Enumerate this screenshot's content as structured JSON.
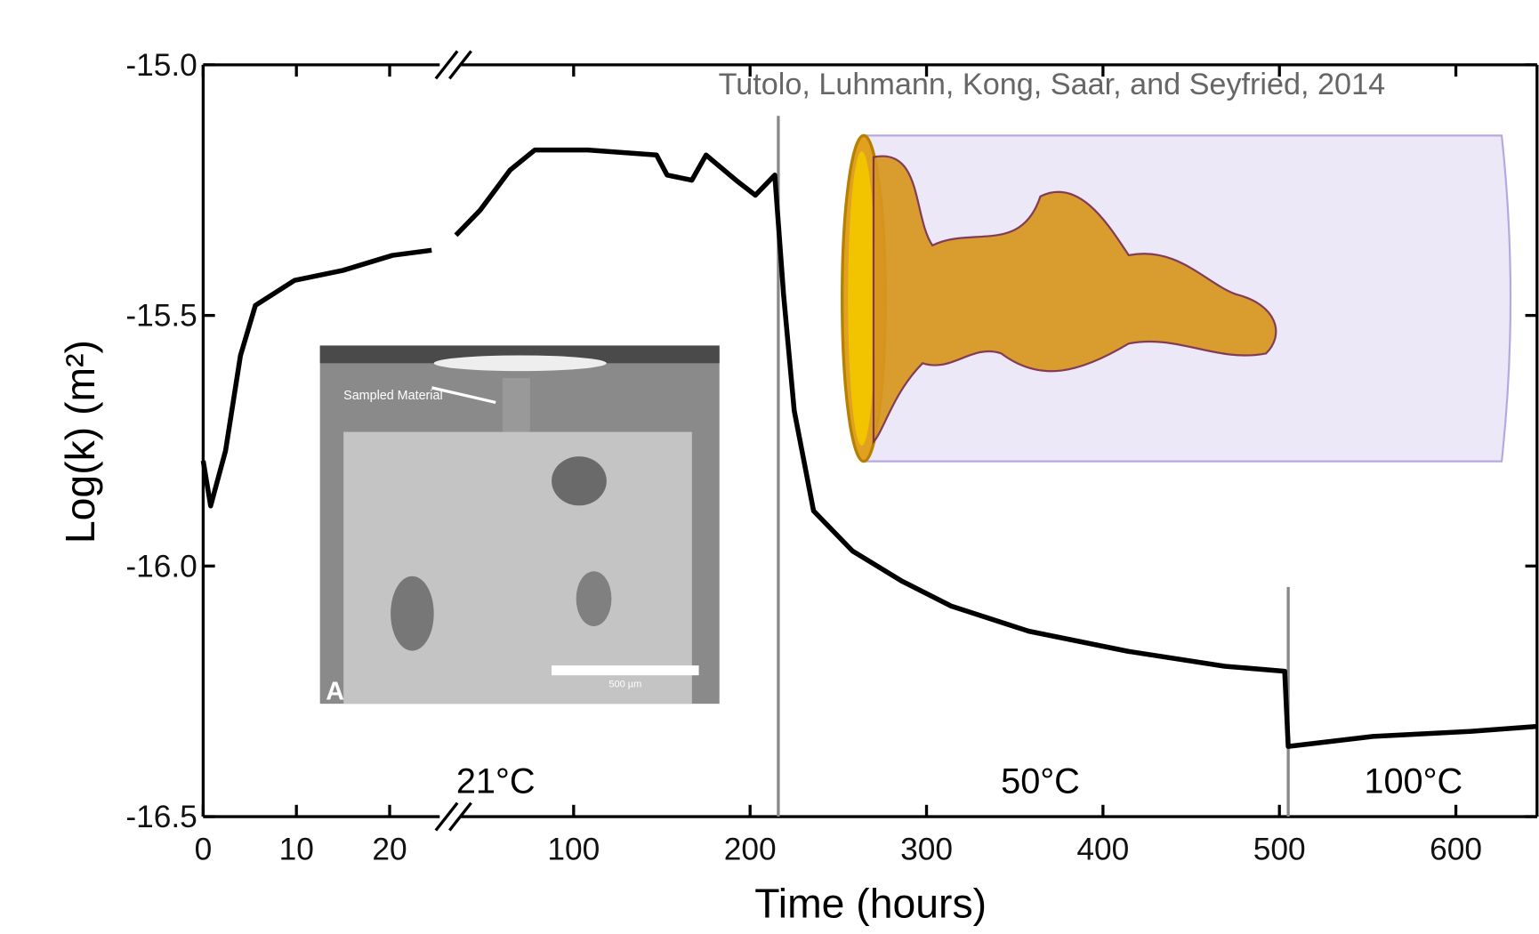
{
  "chart_data": {
    "type": "line",
    "credit": "Tutolo, Luhmann, Kong, Saar, and Seyfried, 2014",
    "xlabel": "Time (hours)",
    "ylabel": "Log(k) (m²)",
    "color": "#000000",
    "x": [
      0,
      0.8,
      2.4,
      4,
      5.6,
      9.8,
      15,
      20.3,
      24.5,
      29,
      33.3,
      47,
      64,
      78,
      108,
      147,
      153,
      167,
      175,
      192,
      203,
      214,
      219,
      225,
      236,
      258,
      286,
      314,
      358,
      414,
      469,
      503,
      505,
      553,
      608,
      646
    ],
    "values": [
      -15.79,
      -15.88,
      -15.77,
      -15.58,
      -15.48,
      -15.43,
      -15.41,
      -15.38,
      -15.37,
      null,
      -15.34,
      -15.29,
      -15.21,
      -15.17,
      -15.17,
      -15.18,
      -15.22,
      -15.23,
      -15.18,
      -15.23,
      -15.26,
      -15.22,
      -15.46,
      -15.69,
      -15.89,
      -15.97,
      -16.03,
      -16.08,
      -16.13,
      -16.17,
      -16.2,
      -16.21,
      -16.36,
      -16.34,
      -16.33,
      -16.32
    ],
    "xlim": [
      0,
      646
    ],
    "axis_break": [
      26,
      33
    ],
    "xticks": [
      0,
      10,
      20,
      100,
      200,
      300,
      400,
      500,
      600
    ],
    "ylim": [
      -16.5,
      -15.0
    ],
    "yticks": [
      {
        "value": -16.5,
        "label": "-16.5"
      },
      {
        "value": -16,
        "label": "-16.0"
      },
      {
        "value": -15.5,
        "label": "-15.5"
      },
      {
        "value": -15,
        "label": "-15.0"
      }
    ],
    "vlines": [
      216,
      505
    ],
    "annotations": [
      "21°C",
      "50°C",
      "100°C"
    ],
    "inset": {
      "label": "Sampled Material",
      "scale": "500 µm",
      "panel": "A"
    }
  }
}
